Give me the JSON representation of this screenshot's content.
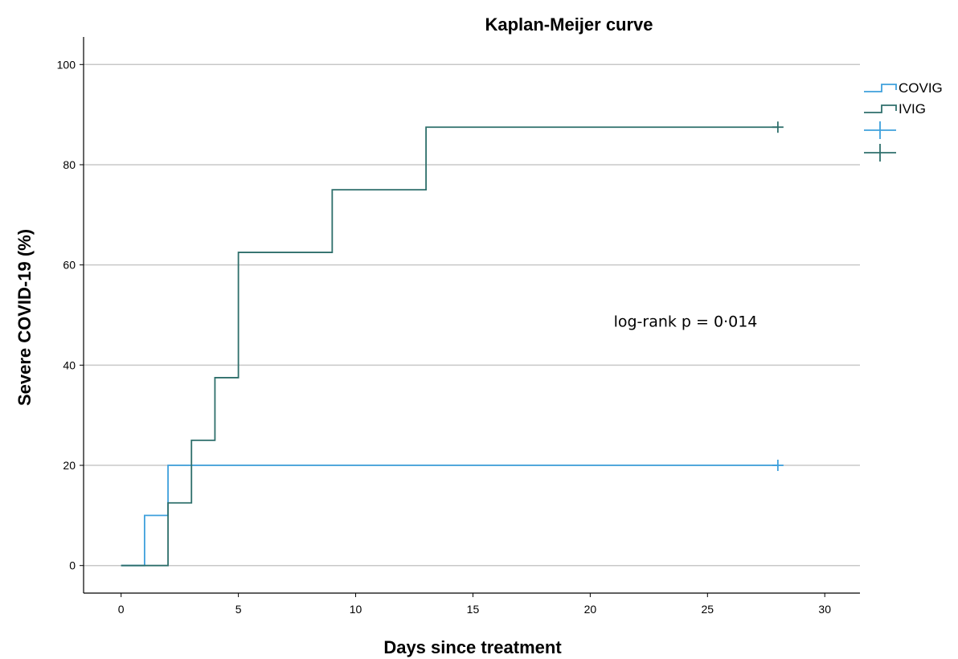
{
  "chart_data": {
    "type": "line",
    "title": "Kaplan-Meijer curve",
    "xlabel": "Days since treatment",
    "ylabel": "Severe COVID-19 (%)",
    "xlim": [
      -1.6,
      31.5
    ],
    "ylim": [
      -5.5,
      105.5
    ],
    "x_ticks": [
      0,
      5,
      10,
      15,
      20,
      25,
      30
    ],
    "y_ticks": [
      0,
      20,
      40,
      60,
      80,
      100
    ],
    "grid": "horizontal",
    "legend_position": "right",
    "series": [
      {
        "name": "COVIG",
        "color": "#3ea0dc",
        "step": true,
        "x": [
          0,
          1,
          2,
          28
        ],
        "y": [
          0,
          10,
          20,
          20
        ],
        "censored": [
          {
            "x": 28,
            "y": 20
          }
        ]
      },
      {
        "name": "IVIG",
        "color": "#2e6f6b",
        "step": true,
        "x": [
          0,
          2,
          3,
          4,
          5,
          9,
          13,
          28
        ],
        "y": [
          0,
          12.5,
          25,
          37.5,
          62.5,
          75,
          87.5,
          87.5
        ],
        "censored": [
          {
            "x": 28,
            "y": 87.5
          }
        ]
      }
    ],
    "annotations": [
      {
        "text": "log-rank p = 0·014",
        "x": 21,
        "y": 40
      }
    ]
  }
}
